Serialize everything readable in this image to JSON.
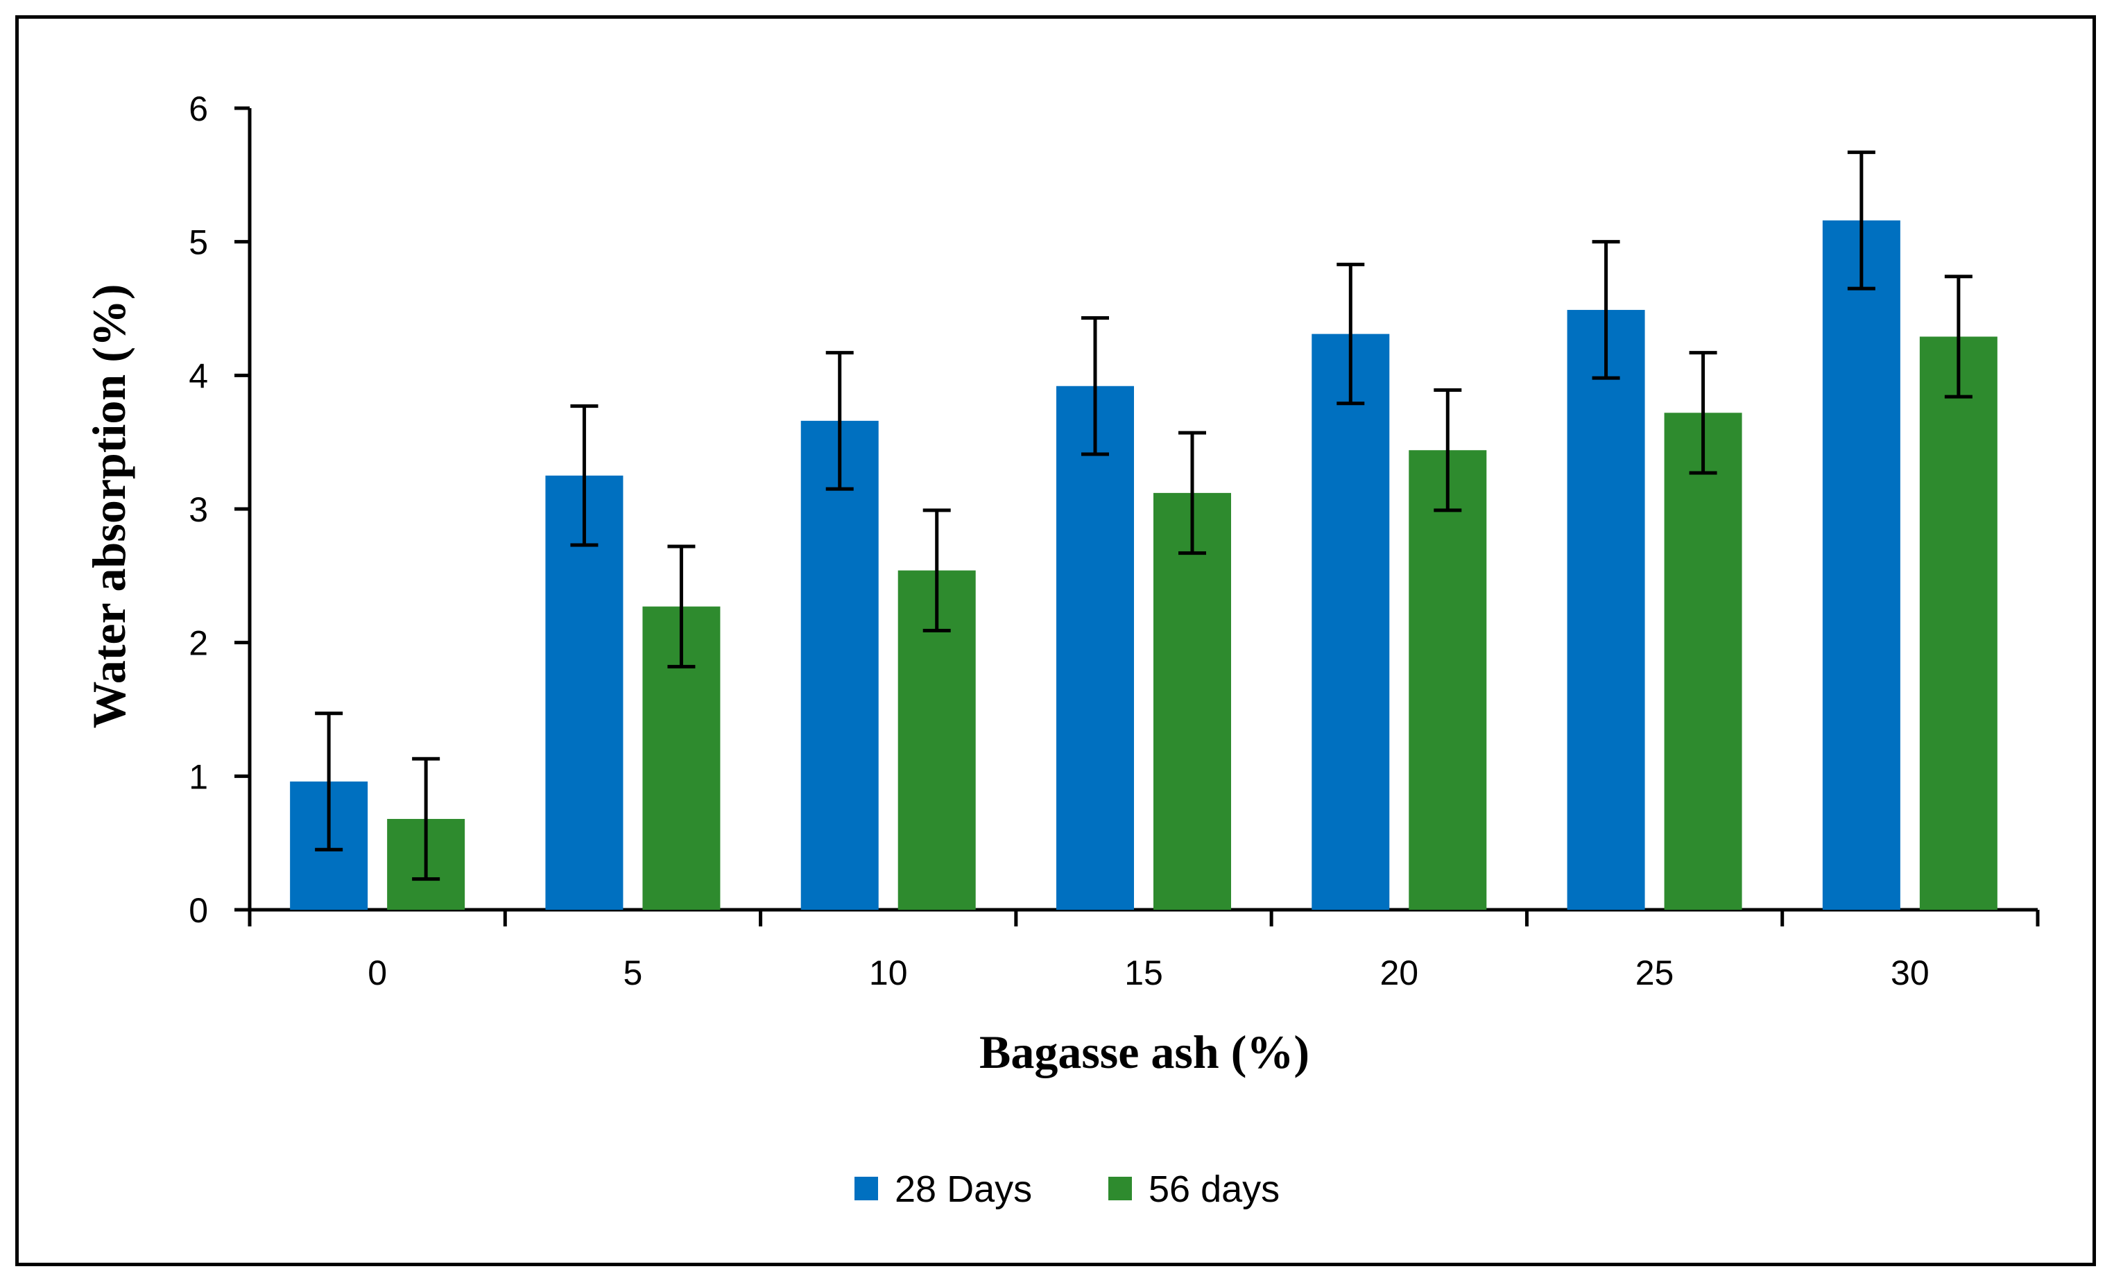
{
  "chart_data": {
    "type": "bar",
    "categories": [
      "0",
      "5",
      "10",
      "15",
      "20",
      "25",
      "30"
    ],
    "series": [
      {
        "name": "28 Days",
        "color": "#0070C0",
        "values": [
          0.96,
          3.25,
          3.66,
          3.92,
          4.31,
          4.49,
          5.16
        ],
        "error": [
          0.51,
          0.52,
          0.51,
          0.51,
          0.52,
          0.51,
          0.51
        ]
      },
      {
        "name": "56 days",
        "color": "#2E8B2E",
        "values": [
          0.68,
          2.27,
          2.54,
          3.12,
          3.44,
          3.72,
          4.29
        ],
        "error": [
          0.45,
          0.45,
          0.45,
          0.45,
          0.45,
          0.45,
          0.45
        ]
      }
    ],
    "xlabel": "Bagasse ash (%)",
    "ylabel": "Water absorption (%)",
    "ylim": [
      0,
      6
    ],
    "yticks": [
      "0",
      "1",
      "2",
      "3",
      "4",
      "5",
      "6"
    ],
    "grid": false,
    "legend_position": "bottom"
  }
}
